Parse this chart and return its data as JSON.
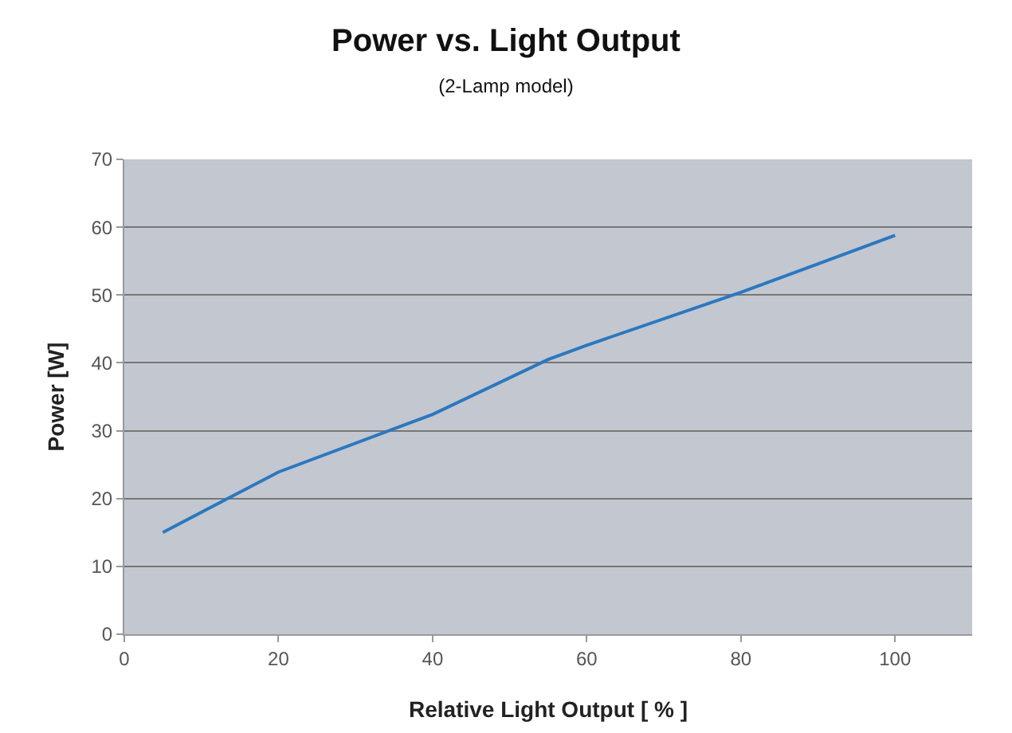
{
  "chart_data": {
    "type": "line",
    "title": "Power vs. Light Output",
    "subtitle": "(2-Lamp model)",
    "xlabel": "Relative Light Output [ % ]",
    "ylabel": "Power [W]",
    "x": [
      5,
      20,
      40,
      55,
      60,
      80,
      100
    ],
    "series": [
      {
        "color": "#2a78c0",
        "values": [
          15,
          23.9,
          32.4,
          40.5,
          42.6,
          50.4,
          58.8
        ]
      }
    ],
    "xlim": [
      0,
      110
    ],
    "xticks": [
      0,
      20,
      40,
      60,
      80,
      100
    ],
    "ylim": [
      0,
      70
    ],
    "yticks": [
      0,
      10,
      20,
      30,
      40,
      50,
      60,
      70
    ],
    "grid": "y",
    "marker": "none",
    "line_style": "solid"
  }
}
